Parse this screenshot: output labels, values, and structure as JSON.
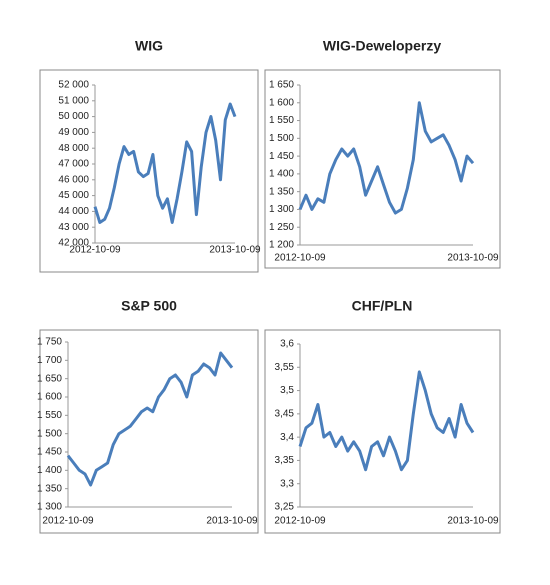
{
  "chart_data": [
    {
      "type": "line",
      "title": "WIG",
      "categories": [
        "2012-10-09",
        null,
        null,
        null,
        null,
        null,
        null,
        null,
        null,
        null,
        null,
        null,
        null,
        null,
        null,
        null,
        null,
        null,
        null,
        null,
        null,
        null,
        null,
        null,
        null,
        null,
        null,
        null,
        null,
        "2013-10-09"
      ],
      "values": [
        44300,
        43300,
        43500,
        44200,
        45500,
        47000,
        48100,
        47600,
        47800,
        46500,
        46200,
        46400,
        47600,
        45000,
        44200,
        44800,
        43300,
        44800,
        46500,
        48400,
        47800,
        43800,
        46800,
        49000,
        50000,
        48500,
        46000,
        49800,
        50800,
        50000
      ],
      "color": "#4a7ebb",
      "ylim": [
        42000,
        52000
      ],
      "yticks": [
        {
          "value": 42000,
          "label": "42 000"
        },
        {
          "value": 43000,
          "label": "43 000"
        },
        {
          "value": 44000,
          "label": "44 000"
        },
        {
          "value": 45000,
          "label": "45 000"
        },
        {
          "value": 46000,
          "label": "46 000"
        },
        {
          "value": 47000,
          "label": "47 000"
        },
        {
          "value": 48000,
          "label": "48 000"
        },
        {
          "value": 49000,
          "label": "49 000"
        },
        {
          "value": 50000,
          "label": "50 000"
        },
        {
          "value": 51000,
          "label": "51 000"
        },
        {
          "value": 52000,
          "label": "52 000"
        }
      ]
    },
    {
      "type": "line",
      "title": "WIG-Deweloperzy",
      "categories": [
        "2012-10-09",
        null,
        null,
        null,
        null,
        null,
        null,
        null,
        null,
        null,
        null,
        null,
        null,
        null,
        null,
        null,
        null,
        null,
        null,
        null,
        null,
        null,
        null,
        null,
        null,
        null,
        null,
        null,
        null,
        "2013-10-09"
      ],
      "values": [
        1300,
        1340,
        1300,
        1330,
        1320,
        1400,
        1440,
        1470,
        1450,
        1470,
        1420,
        1340,
        1380,
        1420,
        1370,
        1320,
        1290,
        1300,
        1360,
        1440,
        1600,
        1520,
        1490,
        1500,
        1510,
        1480,
        1440,
        1380,
        1450,
        1430
      ],
      "color": "#4a7ebb",
      "ylim": [
        1200,
        1650
      ],
      "yticks": [
        {
          "value": 1200,
          "label": "1 200"
        },
        {
          "value": 1250,
          "label": "1 250"
        },
        {
          "value": 1300,
          "label": "1 300"
        },
        {
          "value": 1350,
          "label": "1 350"
        },
        {
          "value": 1400,
          "label": "1 400"
        },
        {
          "value": 1450,
          "label": "1 450"
        },
        {
          "value": 1500,
          "label": "1 500"
        },
        {
          "value": 1550,
          "label": "1 550"
        },
        {
          "value": 1600,
          "label": "1 600"
        },
        {
          "value": 1650,
          "label": "1 650"
        }
      ]
    },
    {
      "type": "line",
      "title": "S&P 500",
      "categories": [
        "2012-10-09",
        null,
        null,
        null,
        null,
        null,
        null,
        null,
        null,
        null,
        null,
        null,
        null,
        null,
        null,
        null,
        null,
        null,
        null,
        null,
        null,
        null,
        null,
        null,
        null,
        null,
        null,
        null,
        null,
        "2013-10-09"
      ],
      "values": [
        1440,
        1420,
        1400,
        1390,
        1360,
        1400,
        1410,
        1420,
        1470,
        1500,
        1510,
        1520,
        1540,
        1560,
        1570,
        1560,
        1600,
        1620,
        1650,
        1660,
        1640,
        1600,
        1660,
        1670,
        1690,
        1680,
        1660,
        1720,
        1700,
        1680
      ],
      "color": "#4a7ebb",
      "ylim": [
        1300,
        1750
      ],
      "yticks": [
        {
          "value": 1300,
          "label": "1 300"
        },
        {
          "value": 1350,
          "label": "1 350"
        },
        {
          "value": 1400,
          "label": "1 400"
        },
        {
          "value": 1450,
          "label": "1 450"
        },
        {
          "value": 1500,
          "label": "1 500"
        },
        {
          "value": 1550,
          "label": "1 550"
        },
        {
          "value": 1600,
          "label": "1 600"
        },
        {
          "value": 1650,
          "label": "1 650"
        },
        {
          "value": 1700,
          "label": "1 700"
        },
        {
          "value": 1750,
          "label": "1 750"
        }
      ]
    },
    {
      "type": "line",
      "title": "CHF/PLN",
      "categories": [
        "2012-10-09",
        null,
        null,
        null,
        null,
        null,
        null,
        null,
        null,
        null,
        null,
        null,
        null,
        null,
        null,
        null,
        null,
        null,
        null,
        null,
        null,
        null,
        null,
        null,
        null,
        null,
        null,
        null,
        null,
        "2013-10-09"
      ],
      "values": [
        3.38,
        3.42,
        3.43,
        3.47,
        3.4,
        3.41,
        3.38,
        3.4,
        3.37,
        3.39,
        3.37,
        3.33,
        3.38,
        3.39,
        3.36,
        3.4,
        3.37,
        3.33,
        3.35,
        3.45,
        3.54,
        3.5,
        3.45,
        3.42,
        3.41,
        3.44,
        3.4,
        3.47,
        3.43,
        3.41
      ],
      "color": "#4a7ebb",
      "ylim": [
        3.25,
        3.6
      ],
      "yticks": [
        {
          "value": 3.25,
          "label": "3,25"
        },
        {
          "value": 3.3,
          "label": "3,3"
        },
        {
          "value": 3.35,
          "label": "3,35"
        },
        {
          "value": 3.4,
          "label": "3,4"
        },
        {
          "value": 3.45,
          "label": "3,45"
        },
        {
          "value": 3.5,
          "label": "3,5"
        },
        {
          "value": 3.55,
          "label": "3,55"
        },
        {
          "value": 3.6,
          "label": "3,6"
        }
      ]
    }
  ]
}
